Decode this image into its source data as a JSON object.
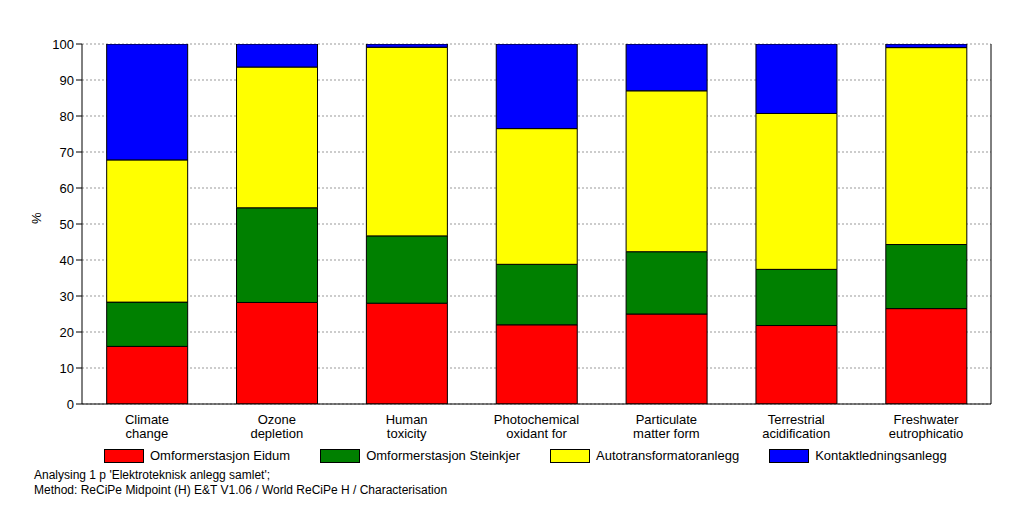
{
  "chart_data": {
    "type": "bar",
    "stacked": true,
    "grid": true,
    "legend": "bottom",
    "ylabel": "%",
    "categories": [
      "Climate change",
      "Ozone depletion",
      "Human toxicity",
      "Photochemical oxidant for",
      "Particulate matter form",
      "Terrestrial acidification",
      "Freshwater eutrophicatio"
    ],
    "series": [
      {
        "name": "Omformerstasjon Eidum",
        "color": "#ff0000",
        "values": [
          16,
          28.2,
          28,
          22,
          25,
          21.8,
          26.5
        ]
      },
      {
        "name": "Omformerstasjon Steinkjer",
        "color": "#008000",
        "values": [
          12.3,
          26.3,
          18.7,
          16.8,
          17.3,
          15.6,
          17.8
        ]
      },
      {
        "name": "Autotransformatoranlegg",
        "color": "#ffff00",
        "values": [
          39.5,
          39.1,
          52.4,
          37.7,
          44.7,
          43.3,
          54.7
        ]
      },
      {
        "name": "Kontaktledningsanlegg",
        "color": "#0000ff",
        "values": [
          32.2,
          6.4,
          0.9,
          23.5,
          13,
          19.3,
          1
        ]
      }
    ],
    "ylim": [
      0,
      100
    ],
    "yticks": [
      0,
      10,
      20,
      30,
      40,
      50,
      60,
      70,
      80,
      90,
      100
    ],
    "annotations": [
      "Analysing 1 p 'Elektroteknisk anlegg samlet';",
      "Method: ReCiPe Midpoint (H) E&T V1.06 / World ReCiPe H / Characterisation"
    ]
  }
}
